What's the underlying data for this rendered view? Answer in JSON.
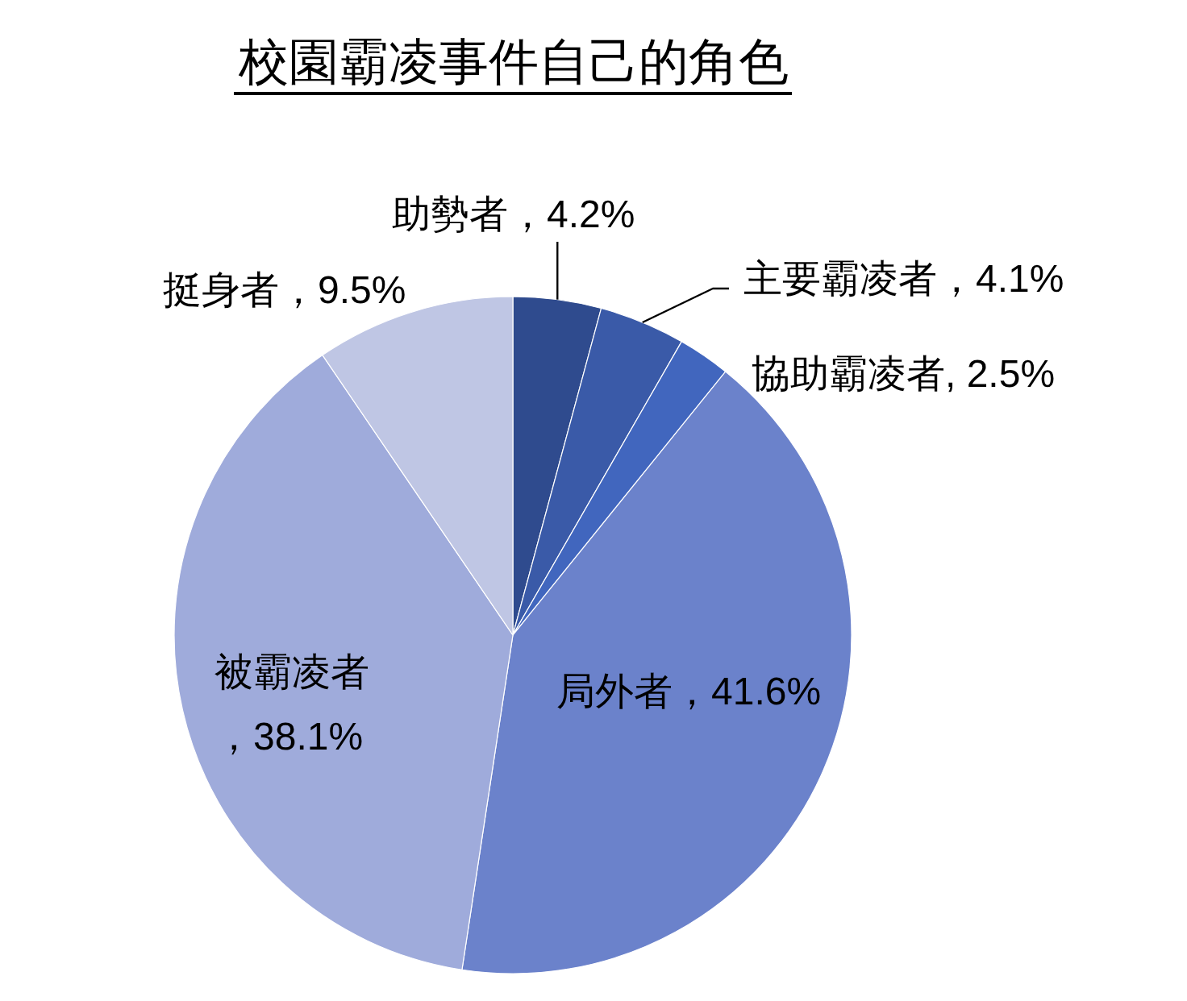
{
  "chart_data": {
    "type": "pie",
    "title": "校園霸凌事件自己的角色",
    "categories": [
      "助勢者",
      "主要霸凌者",
      "協助霸凌者",
      "局外者",
      "被霸凌者",
      "挺身者"
    ],
    "values": [
      4.2,
      4.1,
      2.5,
      41.6,
      38.1,
      9.5
    ],
    "colors": [
      "#2f4b8e",
      "#3a5aa8",
      "#4166be",
      "#6b82cb",
      "#9fabdb",
      "#bfc6e4"
    ],
    "value_labels": [
      "，4.2%",
      "，4.1%",
      ", 2.5%",
      "，41.6%",
      "，38.1%",
      "，9.5%"
    ]
  }
}
